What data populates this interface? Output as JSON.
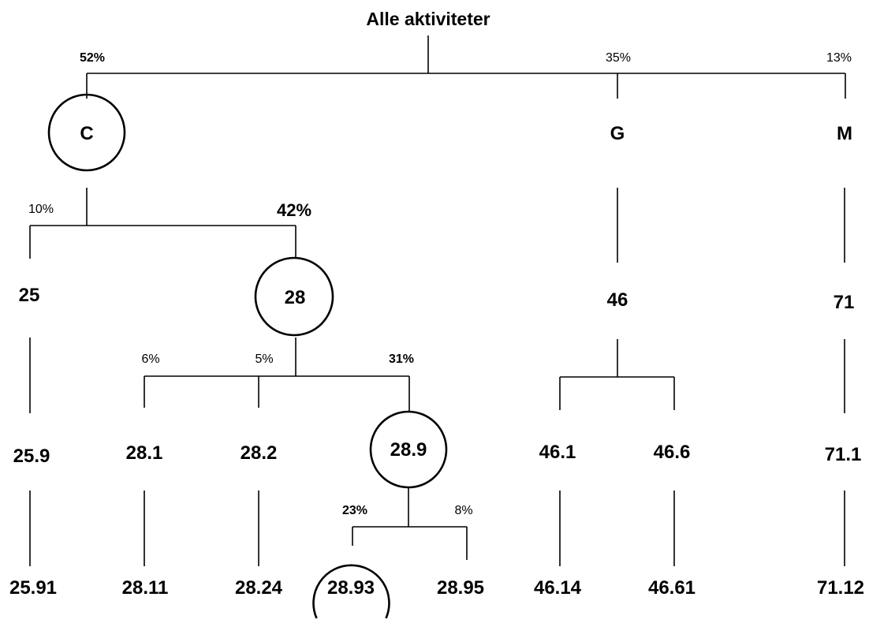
{
  "title": "Alle aktiviteter",
  "nodes": {
    "C": "C",
    "G": "G",
    "M": "M",
    "n25": "25",
    "n28": "28",
    "n46": "46",
    "n71": "71",
    "n25_9": "25.9",
    "n28_1": "28.1",
    "n28_2": "28.2",
    "n28_9": "28.9",
    "n46_1": "46.1",
    "n46_6": "46.6",
    "n71_1": "71.1",
    "n25_91": "25.91",
    "n28_11": "28.11",
    "n28_24": "28.24",
    "n28_93": "28.93",
    "n28_95": "28.95",
    "n46_14": "46.14",
    "n46_61": "46.61",
    "n71_12": "71.12"
  },
  "shares": {
    "C": "52%",
    "G": "35%",
    "M": "13%",
    "n25": "10%",
    "n28": "42%",
    "n28_1": "6%",
    "n28_2": "5%",
    "n28_9": "31%",
    "n28_93": "23%",
    "n28_95": "8%"
  }
}
